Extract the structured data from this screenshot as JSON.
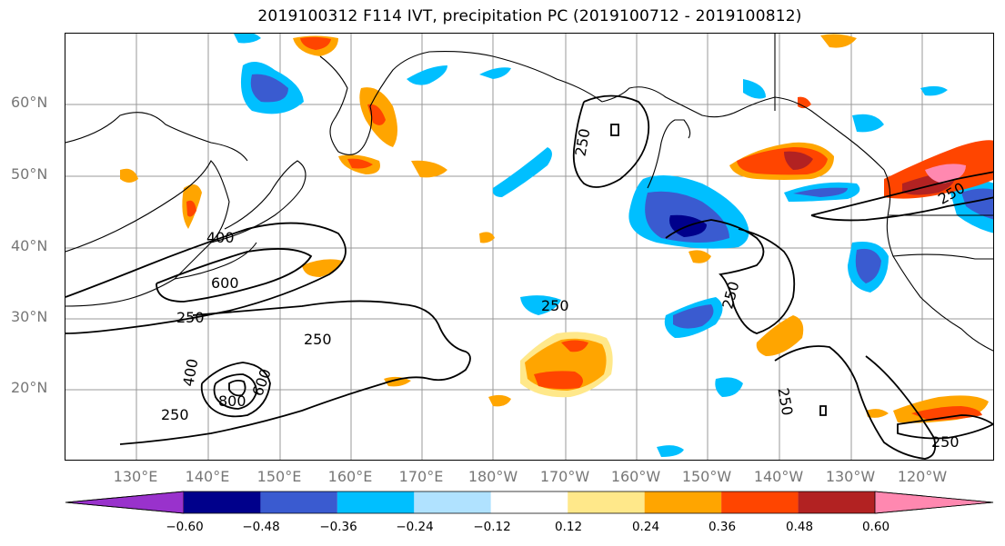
{
  "title": "2019100312 F114 IVT, precipitation PC (2019100712 - 2019100812)",
  "latitude_labels": [
    "60°N",
    "50°N",
    "40°N",
    "30°N",
    "20°N"
  ],
  "longitude_labels": [
    "130°E",
    "140°E",
    "150°E",
    "160°E",
    "170°E",
    "180°W",
    "170°W",
    "160°W",
    "150°W",
    "140°W",
    "130°W",
    "120°W"
  ],
  "contour_labels": [
    "400",
    "600",
    "250",
    "250",
    "250",
    "400",
    "800",
    "600",
    "250",
    "250",
    "250",
    "250",
    "250",
    "250"
  ],
  "colorbar": {
    "tick_labels": [
      "−0.60",
      "−0.48",
      "−0.36",
      "−0.24",
      "−0.12",
      "0.12",
      "0.24",
      "0.36",
      "0.48",
      "0.60"
    ],
    "colors": [
      "#9932cc",
      "#00008b",
      "#3a5bd0",
      "#00bfff",
      "#b0e2ff",
      "#ffffff",
      "#ffe88a",
      "#ffa500",
      "#ff4500",
      "#b22222",
      "#ff88b0"
    ]
  },
  "palette": {
    "land_outline": "#000000",
    "grid": "#999999",
    "ivt_contour": "#000000"
  }
}
